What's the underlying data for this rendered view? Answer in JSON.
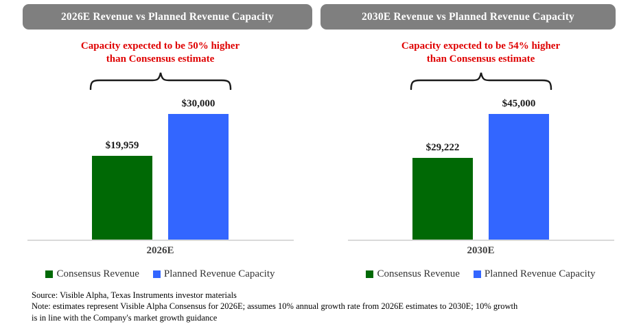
{
  "page": {
    "background": "#FFFFFF"
  },
  "chart_data": [
    {
      "type": "bar",
      "title": "2026E Revenue vs Planned Revenue Capacity",
      "annotation": "Capacity expected to be 50% higher\nthan Consensus estimate",
      "categories": [
        "2026E"
      ],
      "xlabel": "",
      "ylabel": "",
      "grid": false,
      "legend_position": "bottom",
      "ylim": [
        0,
        33000
      ],
      "series": [
        {
          "name": "Consensus Revenue",
          "value": 19959,
          "label": "$19,959",
          "color": "#006905"
        },
        {
          "name": "Planned Revenue Capacity",
          "value": 30000,
          "label": "$30,000",
          "color": "#3366FF"
        }
      ]
    },
    {
      "type": "bar",
      "title": "2030E Revenue vs Planned Revenue Capacity",
      "annotation": "Capacity expected to be 54% higher\nthan Consensus estimate",
      "categories": [
        "2030E"
      ],
      "xlabel": "",
      "ylabel": "",
      "grid": false,
      "legend_position": "bottom",
      "ylim": [
        0,
        49000
      ],
      "series": [
        {
          "name": "Consensus Revenue",
          "value": 29222,
          "label": "$29,222",
          "color": "#006905"
        },
        {
          "name": "Planned Revenue Capacity",
          "value": 45000,
          "label": "$45,000",
          "color": "#3366FF"
        }
      ]
    }
  ],
  "footer": {
    "source": "Source: Visible Alpha, Texas Instruments investor materials",
    "note": "Note: estimates represent Visible Alpha Consensus for 2026E; assumes 10% annual growth rate from 2026E estimates to 2030E; 10% growth\nis in line with the Company's market growth guidance"
  },
  "colors": {
    "header_bg": "#7F7F7F",
    "header_text": "#FFFFFF",
    "annotation_red": "#DF0000",
    "consensus_green": "#006905",
    "capacity_blue": "#3366FF",
    "axis_line": "#D9D9D9",
    "label_text": "#3F3F3F",
    "brace": "#1A1A1A"
  }
}
